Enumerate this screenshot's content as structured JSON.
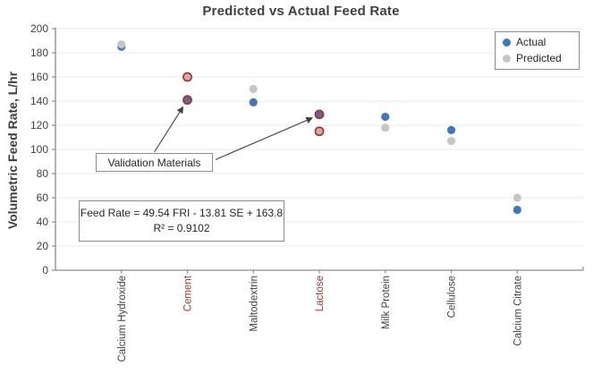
{
  "title": "Predicted vs Actual Feed Rate",
  "y_axis": {
    "label": "Volumetric Feed Rate, L/hr",
    "ticks": [
      0,
      20,
      40,
      60,
      80,
      100,
      120,
      140,
      160,
      180,
      200
    ]
  },
  "legend": {
    "items": [
      {
        "label": "Actual",
        "color": "#4576b5"
      },
      {
        "label": "Predicted",
        "color": "#c6c6c6"
      }
    ]
  },
  "annotations": {
    "validation_label": "Validation Materials",
    "equation_line1": "Feed Rate = 49.54 FRI - 13.81 SE + 163.8",
    "equation_line2": "R² = 0.9102"
  },
  "chart_data": {
    "type": "scatter",
    "title": "Predicted vs Actual Feed Rate",
    "xlabel": "",
    "ylabel": "Volumetric Feed Rate, L/hr",
    "ylim": [
      0,
      200
    ],
    "ytick_step": 20,
    "grid": "horizontal",
    "legend_position": "top-right",
    "categories": [
      "Calcium Hydroxide",
      "Cement",
      "Maltodextrin",
      "Lactose",
      "Milk Protein",
      "Cellulose",
      "Calcium Citrate"
    ],
    "validation_categories": [
      "Cement",
      "Lactose"
    ],
    "series": [
      {
        "name": "Actual",
        "values": [
          185,
          141,
          139,
          129,
          127,
          116,
          50
        ]
      },
      {
        "name": "Predicted",
        "values": [
          187,
          160,
          150,
          115,
          118,
          107,
          60
        ]
      }
    ]
  },
  "colors": {
    "actual": "#4576b5",
    "predicted": "#c6c6c6",
    "validation_actual_fill": "#6f6387",
    "validation_predicted_fill": "#d5a7a7",
    "validation_outline": "#953634",
    "category_label": "#3f3f3f",
    "validation_category_label": "#953735",
    "gridline": "#e8e8e8",
    "axis_line": "#8c8c8c",
    "arrow": "#404040"
  }
}
